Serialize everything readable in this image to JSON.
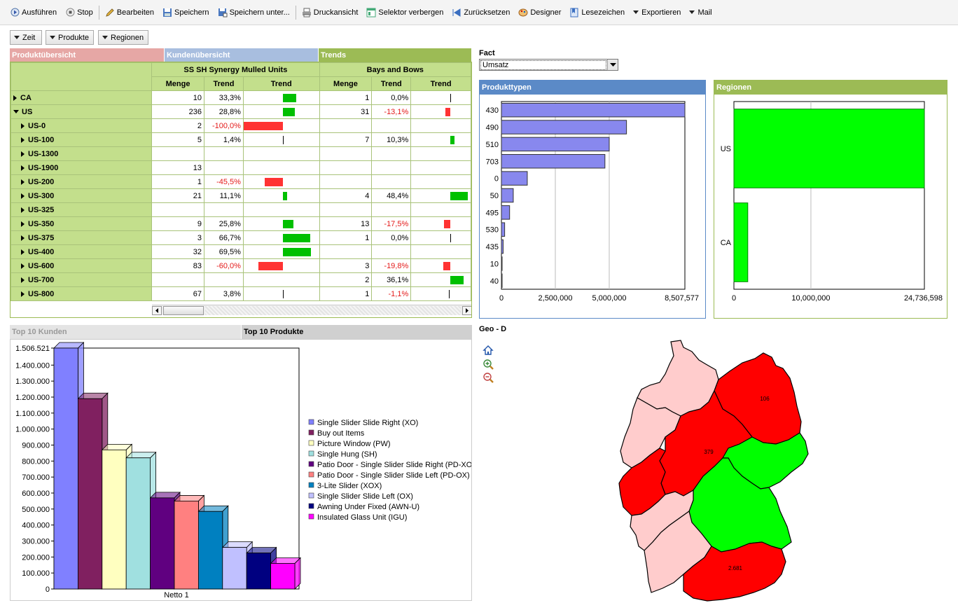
{
  "toolbar": {
    "items": [
      {
        "label": "Ausführen",
        "icon": "play-icon"
      },
      {
        "label": "Stop",
        "icon": "stop-icon"
      },
      {
        "label": "Bearbeiten",
        "icon": "pencil-icon"
      },
      {
        "label": "Speichern",
        "icon": "save-icon"
      },
      {
        "label": "Speichern unter...",
        "icon": "save-as-icon"
      },
      {
        "label": "Druckansicht",
        "icon": "print-icon"
      },
      {
        "label": "Selektor verbergen",
        "icon": "selector-icon"
      },
      {
        "label": "Zurücksetzen",
        "icon": "reset-icon"
      },
      {
        "label": "Designer",
        "icon": "designer-icon"
      },
      {
        "label": "Lesezeichen",
        "icon": "bookmark-icon"
      },
      {
        "label": "Exportieren",
        "icon": "chevron-down-icon"
      },
      {
        "label": "Mail",
        "icon": "chevron-down-icon"
      }
    ]
  },
  "filters": {
    "zeit": "Zeit",
    "produkte": "Produkte",
    "regionen": "Regionen"
  },
  "tabs_top": {
    "t1": "Produktübersicht",
    "t2": "Kundenübersicht",
    "t3": "Trends"
  },
  "pivot": {
    "group1": "SS SH Synergy Mulled Units",
    "group2": "Bays and Bows",
    "col_menge": "Menge",
    "col_trend": "Trend",
    "col_trend2": "Trend",
    "rows": [
      {
        "label": "CA",
        "expanded": false,
        "indent": 0,
        "m1": "10",
        "p1": "33,3%",
        "t1": 0.333,
        "m2": "1",
        "p2": "0,0%",
        "t2": 0
      },
      {
        "label": "US",
        "expanded": true,
        "indent": 0,
        "m1": "236",
        "p1": "28,8%",
        "t1": 0.288,
        "m2": "31",
        "p2": "-13,1%",
        "t2": -0.131
      },
      {
        "label": "US-0",
        "indent": 1,
        "m1": "2",
        "p1": "-100,0%",
        "t1": -1.0,
        "m2": "",
        "p2": "",
        "t2": null
      },
      {
        "label": "US-100",
        "indent": 1,
        "m1": "5",
        "p1": "1,4%",
        "t1": 0.014,
        "m2": "7",
        "p2": "10,3%",
        "t2": 0.103
      },
      {
        "label": "US-1300",
        "indent": 1,
        "m1": "",
        "p1": "",
        "t1": null,
        "m2": "",
        "p2": "",
        "t2": null
      },
      {
        "label": "US-1900",
        "indent": 1,
        "m1": "13",
        "p1": "",
        "t1": null,
        "m2": "",
        "p2": "",
        "t2": null
      },
      {
        "label": "US-200",
        "indent": 1,
        "m1": "1",
        "p1": "-45,5%",
        "t1": -0.455,
        "m2": "",
        "p2": "",
        "t2": null
      },
      {
        "label": "US-300",
        "indent": 1,
        "m1": "21",
        "p1": "11,1%",
        "t1": 0.111,
        "m2": "4",
        "p2": "48,4%",
        "t2": 0.484
      },
      {
        "label": "US-325",
        "indent": 1,
        "m1": "",
        "p1": "",
        "t1": null,
        "m2": "",
        "p2": "",
        "t2": null
      },
      {
        "label": "US-350",
        "indent": 1,
        "m1": "9",
        "p1": "25,8%",
        "t1": 0.258,
        "m2": "13",
        "p2": "-17,5%",
        "t2": -0.175
      },
      {
        "label": "US-375",
        "indent": 1,
        "m1": "3",
        "p1": "66,7%",
        "t1": 0.667,
        "m2": "1",
        "p2": "0,0%",
        "t2": 0
      },
      {
        "label": "US-400",
        "indent": 1,
        "m1": "32",
        "p1": "69,5%",
        "t1": 0.695,
        "m2": "",
        "p2": "",
        "t2": null
      },
      {
        "label": "US-600",
        "indent": 1,
        "m1": "83",
        "p1": "-60,0%",
        "t1": -0.6,
        "m2": "3",
        "p2": "-19,8%",
        "t2": -0.198
      },
      {
        "label": "US-700",
        "indent": 1,
        "m1": "",
        "p1": "",
        "t1": null,
        "m2": "2",
        "p2": "36,1%",
        "t2": 0.361
      },
      {
        "label": "US-800",
        "indent": 1,
        "m1": "67",
        "p1": "3,8%",
        "t1": 0.038,
        "m2": "1",
        "p2": "-1,1%",
        "t2": -0.011
      }
    ]
  },
  "fact": {
    "label": "Fact",
    "value": "Umsatz"
  },
  "panels": {
    "produkttypen": "Produkttypen",
    "regionen": "Regionen",
    "geo": "Geo - D"
  },
  "tabs_bottom": {
    "t1": "Top 10 Kunden",
    "t2": "Top 10 Produkte"
  },
  "colors": {
    "green_bar": "#00c000",
    "red_bar": "#ff3333",
    "pivot_header": "#c3df8c",
    "blue_bar": "#8888ee",
    "region_bar": "#00ff00"
  },
  "chart_data": [
    {
      "type": "bar",
      "orientation": "horizontal",
      "title": "Produkttypen",
      "categories": [
        "430",
        "490",
        "510",
        "703",
        "0",
        "50",
        "495",
        "530",
        "435",
        "10",
        "40"
      ],
      "values": [
        8507577,
        5800000,
        5000000,
        4800000,
        1200000,
        550000,
        380000,
        150000,
        80000,
        30000,
        5000
      ],
      "xlim": [
        0,
        8507577
      ],
      "xticks": [
        "0",
        "2,500,000",
        "5,000,000",
        "8,507,577"
      ],
      "grid": true
    },
    {
      "type": "bar",
      "orientation": "horizontal",
      "title": "Regionen",
      "categories": [
        "US",
        "CA"
      ],
      "values": [
        24736598,
        1800000
      ],
      "xlim": [
        0,
        24736598
      ],
      "xticks": [
        "0",
        "10,000,000",
        "24,736,598"
      ],
      "grid": true
    },
    {
      "type": "bar",
      "title": "Top 10 Produkte",
      "categories": [
        "Netto 1"
      ],
      "series": [
        {
          "name": "Single Slider Slide Right (XO)",
          "values": [
            1506521
          ],
          "color": "#8080ff"
        },
        {
          "name": "Buy out Items",
          "values": [
            1190000
          ],
          "color": "#802060"
        },
        {
          "name": "Picture Window (PW)",
          "values": [
            870000
          ],
          "color": "#ffffc0"
        },
        {
          "name": "Single Hung (SH)",
          "values": [
            820000
          ],
          "color": "#a0e0e0"
        },
        {
          "name": "Patio Door - Single Slider Slide Right (PD-XO)",
          "values": [
            570000
          ],
          "color": "#600080"
        },
        {
          "name": "Patio Door - Single Slider Slide Left (PD-OX)",
          "values": [
            550000
          ],
          "color": "#ff8080"
        },
        {
          "name": "3-Lite Slider (XOX)",
          "values": [
            485000
          ],
          "color": "#0080c0"
        },
        {
          "name": "Single Slider Slide Left (OX)",
          "values": [
            260000
          ],
          "color": "#c0c0ff"
        },
        {
          "name": "Awning Under Fixed (AWN-U)",
          "values": [
            225000
          ],
          "color": "#000080"
        },
        {
          "name": "Insulated Glass Unit (IGU)",
          "values": [
            160000
          ],
          "color": "#ff00ff"
        }
      ],
      "ylim": [
        0,
        1506521
      ],
      "yticks": [
        "0",
        "100.000",
        "200.000",
        "300.000",
        "400.000",
        "500.000",
        "600.000",
        "700.000",
        "800.000",
        "900.000",
        "1.000.000",
        "1.100.000",
        "1.200.000",
        "1.300.000",
        "1.400.000",
        "1.506.521"
      ],
      "xlabel": "Netto 1"
    }
  ],
  "map": {
    "labels": [
      "106",
      "379",
      "2.681"
    ]
  }
}
